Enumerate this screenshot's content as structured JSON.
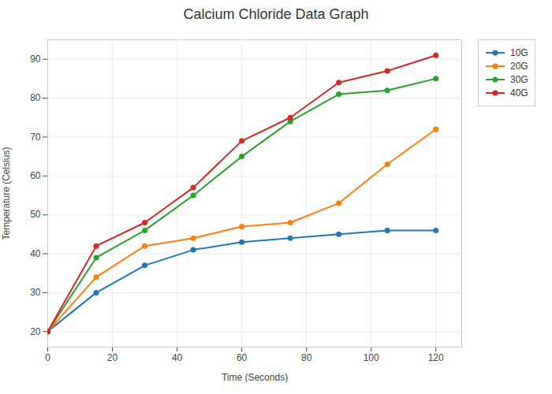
{
  "chart_data": {
    "type": "line",
    "title": "Calcium Chloride Data Graph",
    "xlabel": "Time (Seconds)",
    "ylabel": "Temperature (Celsius)",
    "x": [
      0,
      15,
      30,
      45,
      60,
      75,
      90,
      105,
      120
    ],
    "series": [
      {
        "name": "10G",
        "color": "#1f77b4",
        "values": [
          20,
          30,
          37,
          41,
          43,
          44,
          45,
          46,
          46
        ]
      },
      {
        "name": "20G",
        "color": "#ff7f0e",
        "values": [
          20,
          34,
          42,
          44,
          47,
          48,
          53,
          63,
          72
        ]
      },
      {
        "name": "30G",
        "color": "#2ca02c",
        "values": [
          20,
          39,
          46,
          55,
          65,
          74,
          81,
          82,
          85
        ]
      },
      {
        "name": "40G",
        "color": "#d62728",
        "values": [
          20,
          42,
          48,
          57,
          69,
          75,
          84,
          87,
          91
        ]
      }
    ],
    "xlim": [
      0,
      128
    ],
    "ylim": [
      16,
      95
    ],
    "xticks": [
      0,
      20,
      40,
      60,
      80,
      100,
      120
    ],
    "yticks": [
      20,
      30,
      40,
      50,
      60,
      70,
      80,
      90
    ],
    "grid": true,
    "legend": "right",
    "marker": "circle"
  }
}
